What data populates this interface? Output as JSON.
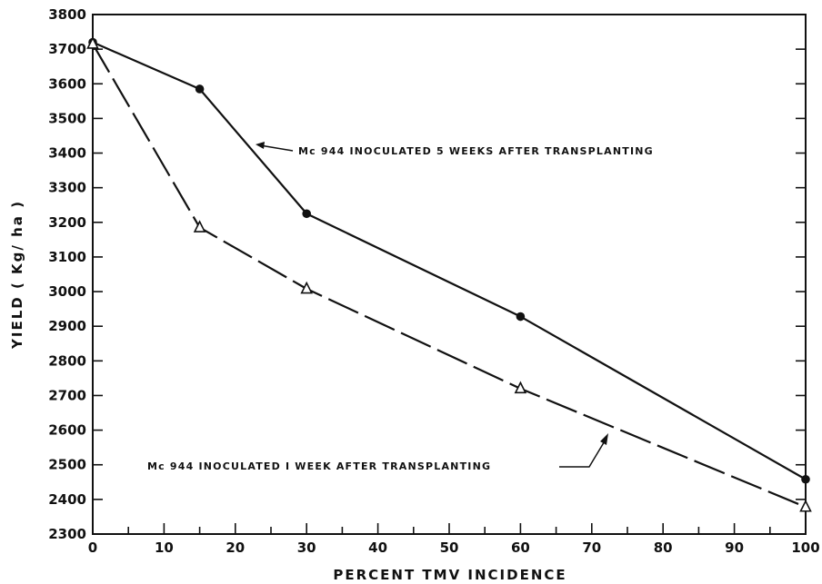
{
  "chart_data": {
    "type": "line",
    "xlabel": "PERCENT TMV INCIDENCE",
    "ylabel": "YIELD ( Kg/ ha )",
    "xlim": [
      0,
      100
    ],
    "ylim": [
      2300,
      3800
    ],
    "x_ticks": [
      0,
      10,
      20,
      30,
      40,
      50,
      60,
      70,
      80,
      90,
      100
    ],
    "y_ticks": [
      2300,
      2400,
      2500,
      2600,
      2700,
      2800,
      2900,
      3000,
      3100,
      3200,
      3300,
      3400,
      3500,
      3600,
      3700,
      3800
    ],
    "x_minor_step": 5,
    "grid": false,
    "series": [
      {
        "key": "five_weeks",
        "marker": "filled-circle",
        "line_style": "solid",
        "points": [
          {
            "x": 0,
            "y": 3720
          },
          {
            "x": 15,
            "y": 3585
          },
          {
            "x": 30,
            "y": 3225
          },
          {
            "x": 60,
            "y": 2928
          },
          {
            "x": 100,
            "y": 2458
          }
        ]
      },
      {
        "key": "one_week",
        "marker": "open-triangle",
        "line_style": "long-dash",
        "points": [
          {
            "x": 0,
            "y": 3715
          },
          {
            "x": 15,
            "y": 3185
          },
          {
            "x": 30,
            "y": 3008
          },
          {
            "x": 60,
            "y": 2720
          },
          {
            "x": 100,
            "y": 2378
          }
        ]
      }
    ],
    "annotations": [
      {
        "series": "five_weeks",
        "text": "Mc 944  INOCULATED 5 WEEKS  AFTER TRANSPLANTING"
      },
      {
        "series": "one_week",
        "text": "Mc 944  INOCULATED I WEEK AFTER TRANSPLANTING"
      }
    ],
    "colors": {
      "ink": "#111111",
      "background": "#ffffff"
    }
  }
}
